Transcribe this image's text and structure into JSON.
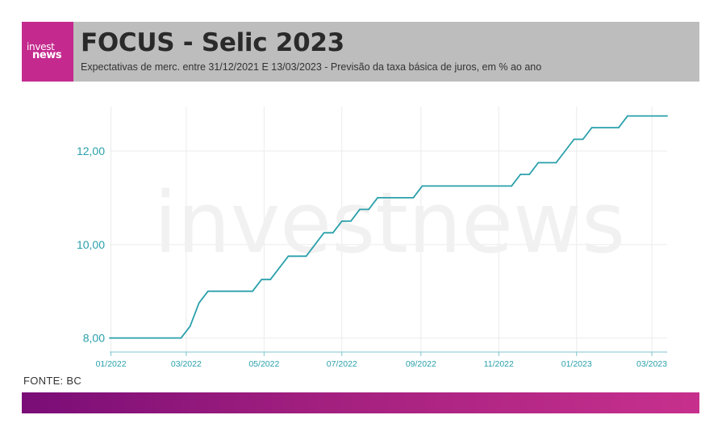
{
  "header": {
    "logo_line1": "invest",
    "logo_line2": "news",
    "title": "FOCUS - Selic 2023",
    "subtitle": "Expectativas de merc. entre 31/12/2021 E 13/03/2023 - Previsão da taxa básica de juros, em % ao ano"
  },
  "watermark": "investnews",
  "source": "FONTE: BC",
  "colors": {
    "line": "#2aa0ab",
    "axis_text": "#2aa0ab",
    "header_bg": "#bdbdbd",
    "logo_bg": "#c42a8e",
    "gradient_start": "#7a0d77",
    "gradient_end": "#c7308d"
  },
  "chart_data": {
    "type": "line",
    "title": "FOCUS - Selic 2023",
    "xlabel": "",
    "ylabel": "",
    "x_tick_labels": [
      "01/2022",
      "03/2022",
      "05/2022",
      "07/2022",
      "09/2022",
      "11/2022",
      "01/2023",
      "03/2023"
    ],
    "x_tick_dates": [
      "2022-01-01",
      "2022-03-01",
      "2022-05-01",
      "2022-07-01",
      "2022-09-01",
      "2022-11-01",
      "2023-01-01",
      "2023-03-01"
    ],
    "y_ticks": [
      8,
      10,
      12
    ],
    "y_tick_labels": [
      "8,00",
      "10,00",
      "12,00"
    ],
    "xlim": [
      "2021-12-31",
      "2023-03-13"
    ],
    "ylim": [
      7.7,
      12.95
    ],
    "grid": true,
    "series": [
      {
        "points": [
          [
            "2021-12-31",
            8.0
          ],
          [
            "2022-02-25",
            8.0
          ],
          [
            "2022-03-04",
            8.25
          ],
          [
            "2022-03-11",
            8.75
          ],
          [
            "2022-03-18",
            9.0
          ],
          [
            "2022-04-22",
            9.0
          ],
          [
            "2022-04-29",
            9.25
          ],
          [
            "2022-05-06",
            9.25
          ],
          [
            "2022-05-20",
            9.75
          ],
          [
            "2022-06-03",
            9.75
          ],
          [
            "2022-06-17",
            10.25
          ],
          [
            "2022-06-24",
            10.25
          ],
          [
            "2022-07-01",
            10.5
          ],
          [
            "2022-07-08",
            10.5
          ],
          [
            "2022-07-15",
            10.75
          ],
          [
            "2022-07-22",
            10.75
          ],
          [
            "2022-07-29",
            11.0
          ],
          [
            "2022-08-26",
            11.0
          ],
          [
            "2022-09-02",
            11.25
          ],
          [
            "2022-11-11",
            11.25
          ],
          [
            "2022-11-18",
            11.5
          ],
          [
            "2022-11-25",
            11.5
          ],
          [
            "2022-12-02",
            11.75
          ],
          [
            "2022-12-16",
            11.75
          ],
          [
            "2022-12-30",
            12.25
          ],
          [
            "2023-01-06",
            12.25
          ],
          [
            "2023-01-13",
            12.5
          ],
          [
            "2023-02-03",
            12.5
          ],
          [
            "2023-02-10",
            12.75
          ],
          [
            "2023-03-13",
            12.75
          ]
        ]
      }
    ]
  }
}
